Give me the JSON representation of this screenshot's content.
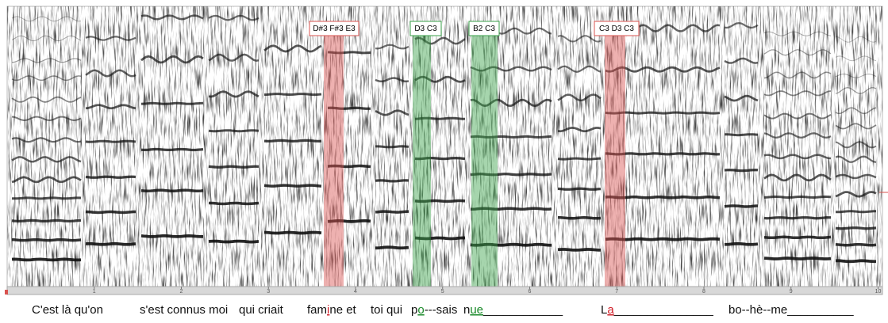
{
  "chart_data": {
    "type": "spectrogram",
    "xlim": [
      0,
      10.05
    ],
    "xticks": [
      1,
      2,
      3,
      4,
      5,
      6,
      7,
      8,
      9,
      10
    ],
    "annotations": [
      "D#3 F#3 E3",
      "D3 C3",
      "B2 C3",
      "C3 D3 C3"
    ]
  },
  "lyrics": {
    "l0": "C'est là qu'on",
    "l1": "s'est connus moi",
    "l2": "qui criait",
    "l3": [
      "fam",
      "i",
      "ne et"
    ],
    "l4": "toi qui",
    "l5": [
      "p",
      "o",
      "---sais"
    ],
    "l6": [
      "n",
      "ue",
      "____________"
    ],
    "l7": [
      "L",
      "a",
      "_______________"
    ],
    "l8": "bo--hè--me__________"
  }
}
